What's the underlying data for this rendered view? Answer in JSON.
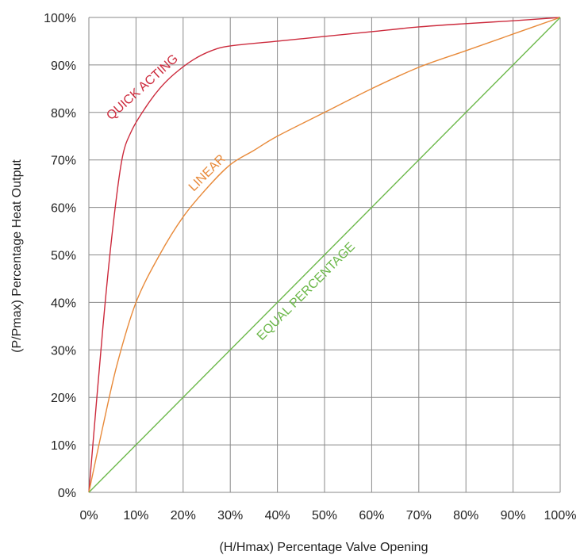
{
  "chart_data": {
    "type": "line",
    "xlabel": "(H/Hmax) Percentage Valve Opening",
    "ylabel": "(P/Pmax) Percentage Heat Output",
    "xlim": [
      0,
      100
    ],
    "ylim": [
      0,
      100
    ],
    "x_ticks": [
      "0%",
      "10%",
      "20%",
      "30%",
      "40%",
      "50%",
      "60%",
      "70%",
      "80%",
      "90%",
      "100%"
    ],
    "y_ticks": [
      "0%",
      "10%",
      "20%",
      "30%",
      "40%",
      "50%",
      "60%",
      "70%",
      "80%",
      "90%",
      "100%"
    ],
    "grid": true,
    "series": [
      {
        "name": "QUICK ACTING",
        "color": "#cc2a3c",
        "points": [
          [
            0,
            0
          ],
          [
            3,
            35
          ],
          [
            5,
            55
          ],
          [
            7,
            70
          ],
          [
            9,
            76
          ],
          [
            12,
            81
          ],
          [
            15,
            85
          ],
          [
            18,
            88
          ],
          [
            22,
            91
          ],
          [
            26,
            93
          ],
          [
            30,
            94
          ],
          [
            40,
            95
          ],
          [
            50,
            96
          ],
          [
            60,
            97
          ],
          [
            70,
            98
          ],
          [
            80,
            98.7
          ],
          [
            90,
            99.3
          ],
          [
            100,
            100
          ]
        ]
      },
      {
        "name": "LINEAR",
        "color": "#e88a3a",
        "points": [
          [
            0,
            0
          ],
          [
            3,
            14
          ],
          [
            6,
            27
          ],
          [
            10,
            40
          ],
          [
            15,
            50
          ],
          [
            20,
            58
          ],
          [
            25,
            64
          ],
          [
            30,
            69
          ],
          [
            35,
            72
          ],
          [
            40,
            75
          ],
          [
            50,
            80
          ],
          [
            60,
            85
          ],
          [
            70,
            89.5
          ],
          [
            80,
            93
          ],
          [
            90,
            96.5
          ],
          [
            100,
            100
          ]
        ]
      },
      {
        "name": "EQUAL PERCENTAGE",
        "color": "#6cb84a",
        "points": [
          [
            0,
            0
          ],
          [
            100,
            100
          ]
        ]
      }
    ]
  }
}
